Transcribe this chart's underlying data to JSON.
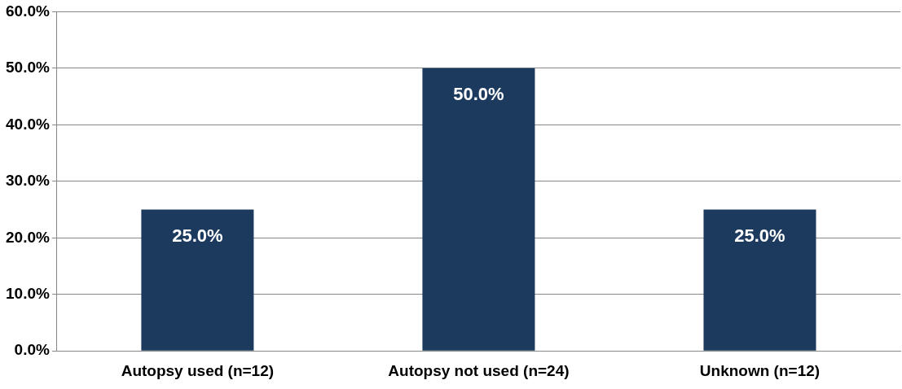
{
  "chart_data": {
    "type": "bar",
    "categories": [
      "Autopsy used (n=12)",
      "Autopsy not used (n=24)",
      "Unknown (n=12)"
    ],
    "values": [
      25,
      50,
      25
    ],
    "value_labels": [
      "25.0%",
      "50.0%",
      "25.0%"
    ],
    "color": "#1b3a5e",
    "ylim": [
      0,
      60
    ],
    "yticks": [
      {
        "value": 0,
        "label": "0.0%"
      },
      {
        "value": 10,
        "label": "10.0%"
      },
      {
        "value": 20,
        "label": "20.0%"
      },
      {
        "value": 30,
        "label": "30.0%"
      },
      {
        "value": 40,
        "label": "40.0%"
      },
      {
        "value": 50,
        "label": "50.0%"
      },
      {
        "value": 60,
        "label": "60.0%"
      }
    ],
    "grid": "y",
    "legend": false
  }
}
